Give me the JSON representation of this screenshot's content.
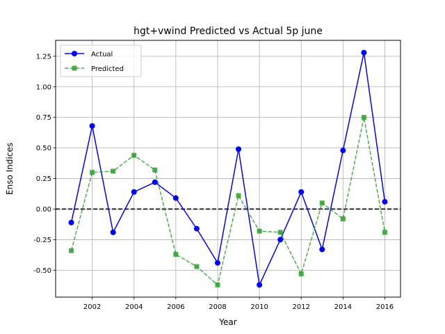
{
  "chart_data": {
    "type": "line",
    "title": "hgt+vwind Predicted vs Actual 5p june",
    "xlabel": "Year",
    "ylabel": "Enso Indices",
    "xlim": [
      2000.25,
      2016.75
    ],
    "ylim": [
      -0.72,
      1.38
    ],
    "xticks": [
      2002,
      2004,
      2006,
      2008,
      2010,
      2012,
      2014,
      2016
    ],
    "yticks": [
      -0.5,
      -0.25,
      0.0,
      0.25,
      0.5,
      0.75,
      1.0,
      1.25
    ],
    "grid": true,
    "legend_position": "upper left",
    "reference_line": {
      "y": 0.0,
      "style": "dashed",
      "color": "#000000"
    },
    "x": [
      2001,
      2002,
      2003,
      2004,
      2005,
      2006,
      2007,
      2008,
      2009,
      2010,
      2011,
      2012,
      2013,
      2014,
      2015,
      2016
    ],
    "series": [
      {
        "name": "Actual",
        "color": "#0000ff",
        "line_style": "solid",
        "marker": "circle",
        "values": [
          -0.11,
          0.68,
          -0.19,
          0.14,
          0.22,
          0.09,
          -0.16,
          -0.44,
          0.49,
          -0.62,
          -0.25,
          0.14,
          -0.33,
          0.48,
          1.28,
          0.06
        ]
      },
      {
        "name": "Predicted",
        "color": "#2ca02c",
        "line_style": "dashed",
        "marker": "square",
        "values": [
          -0.34,
          0.3,
          0.31,
          0.44,
          0.32,
          -0.37,
          -0.47,
          -0.62,
          0.11,
          -0.18,
          -0.19,
          -0.53,
          0.05,
          -0.08,
          0.75,
          -0.19
        ]
      }
    ]
  }
}
